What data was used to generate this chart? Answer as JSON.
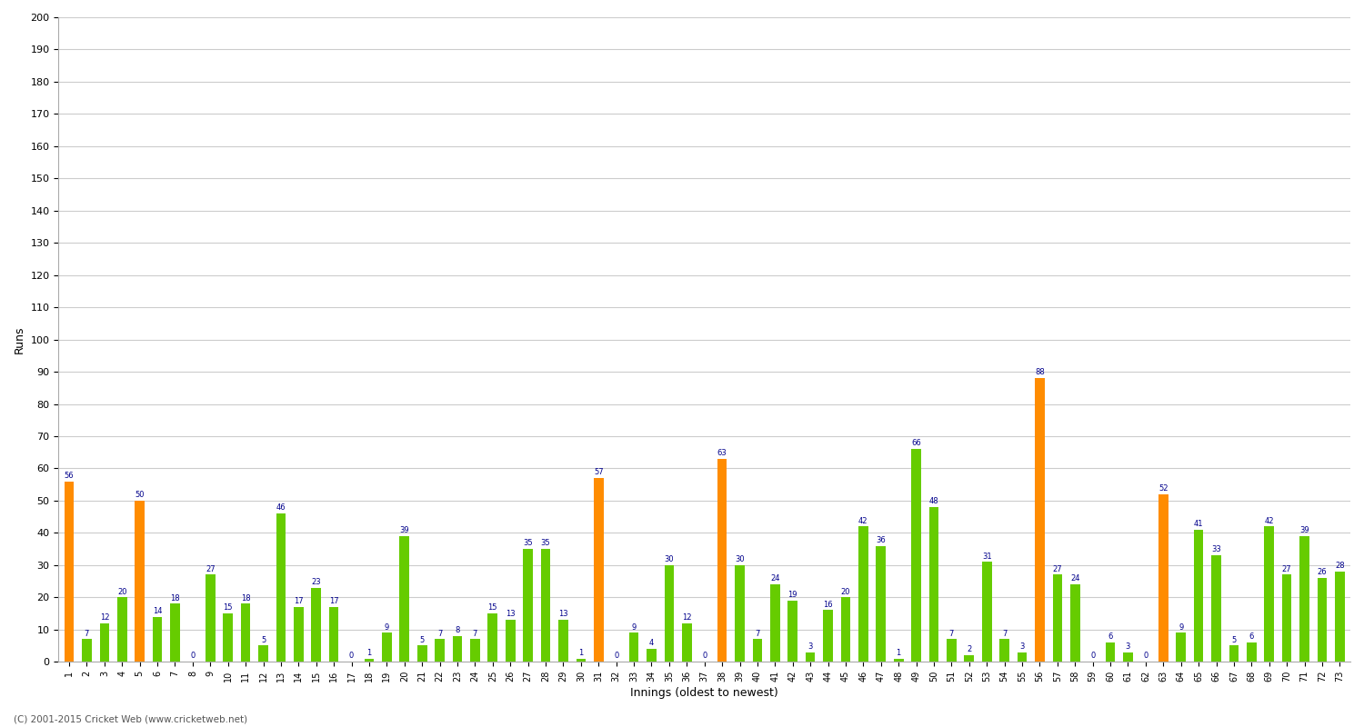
{
  "values": [
    56,
    7,
    12,
    20,
    50,
    14,
    18,
    0,
    27,
    15,
    18,
    5,
    46,
    17,
    23,
    17,
    0,
    1,
    9,
    39,
    5,
    7,
    8,
    7,
    15,
    13,
    35,
    35,
    13,
    1,
    57,
    0,
    9,
    4,
    30,
    12,
    0,
    63,
    30,
    7,
    24,
    19,
    3,
    16,
    20,
    42,
    36,
    1,
    66,
    48,
    7,
    2,
    31,
    7,
    3,
    88,
    27,
    24,
    0,
    6,
    3,
    0,
    52,
    9,
    41,
    33,
    5,
    6,
    42,
    27,
    39,
    26,
    28
  ],
  "colors": [
    "orange",
    "lime",
    "lime",
    "lime",
    "orange",
    "lime",
    "lime",
    "lime",
    "lime",
    "lime",
    "lime",
    "lime",
    "lime",
    "lime",
    "lime",
    "lime",
    "lime",
    "lime",
    "lime",
    "lime",
    "lime",
    "lime",
    "lime",
    "lime",
    "lime",
    "lime",
    "lime",
    "lime",
    "lime",
    "lime",
    "orange",
    "lime",
    "lime",
    "lime",
    "lime",
    "lime",
    "lime",
    "orange",
    "lime",
    "lime",
    "lime",
    "lime",
    "lime",
    "lime",
    "lime",
    "lime",
    "lime",
    "lime",
    "lime",
    "lime",
    "lime",
    "lime",
    "lime",
    "lime",
    "lime",
    "orange",
    "lime",
    "lime",
    "lime",
    "lime",
    "lime",
    "lime",
    "orange",
    "lime",
    "lime",
    "lime",
    "lime",
    "lime",
    "lime",
    "lime",
    "lime",
    "lime",
    "lime"
  ],
  "labels": [
    "1",
    "2",
    "3",
    "4",
    "5",
    "6",
    "7",
    "8",
    "9",
    "10",
    "11",
    "12",
    "13",
    "14",
    "15",
    "16",
    "17",
    "18",
    "19",
    "20",
    "21",
    "22",
    "23",
    "24",
    "25",
    "26",
    "27",
    "28",
    "29",
    "30",
    "31",
    "32",
    "33",
    "34",
    "35",
    "36",
    "37",
    "38",
    "39",
    "40",
    "41",
    "42",
    "43",
    "44",
    "45",
    "46",
    "47",
    "48",
    "49",
    "50",
    "51",
    "52",
    "53",
    "54",
    "55",
    "56",
    "57",
    "58",
    "59",
    "60",
    "61",
    "62",
    "63",
    "64",
    "65",
    "66",
    "67",
    "68",
    "69",
    "70",
    "71",
    "72",
    "73"
  ],
  "xlabel": "Innings (oldest to newest)",
  "ylabel": "Runs",
  "ylim": [
    0,
    200
  ],
  "yticks": [
    0,
    10,
    20,
    30,
    40,
    50,
    60,
    70,
    80,
    90,
    100,
    110,
    120,
    130,
    140,
    150,
    160,
    170,
    180,
    190,
    200
  ],
  "bar_color_orange": "#FF8C00",
  "bar_color_lime": "#66CC00",
  "value_color": "#00008B",
  "bg_color": "#FFFFFF",
  "grid_color": "#CCCCCC",
  "footer": "(C) 2001-2015 Cricket Web (www.cricketweb.net)"
}
